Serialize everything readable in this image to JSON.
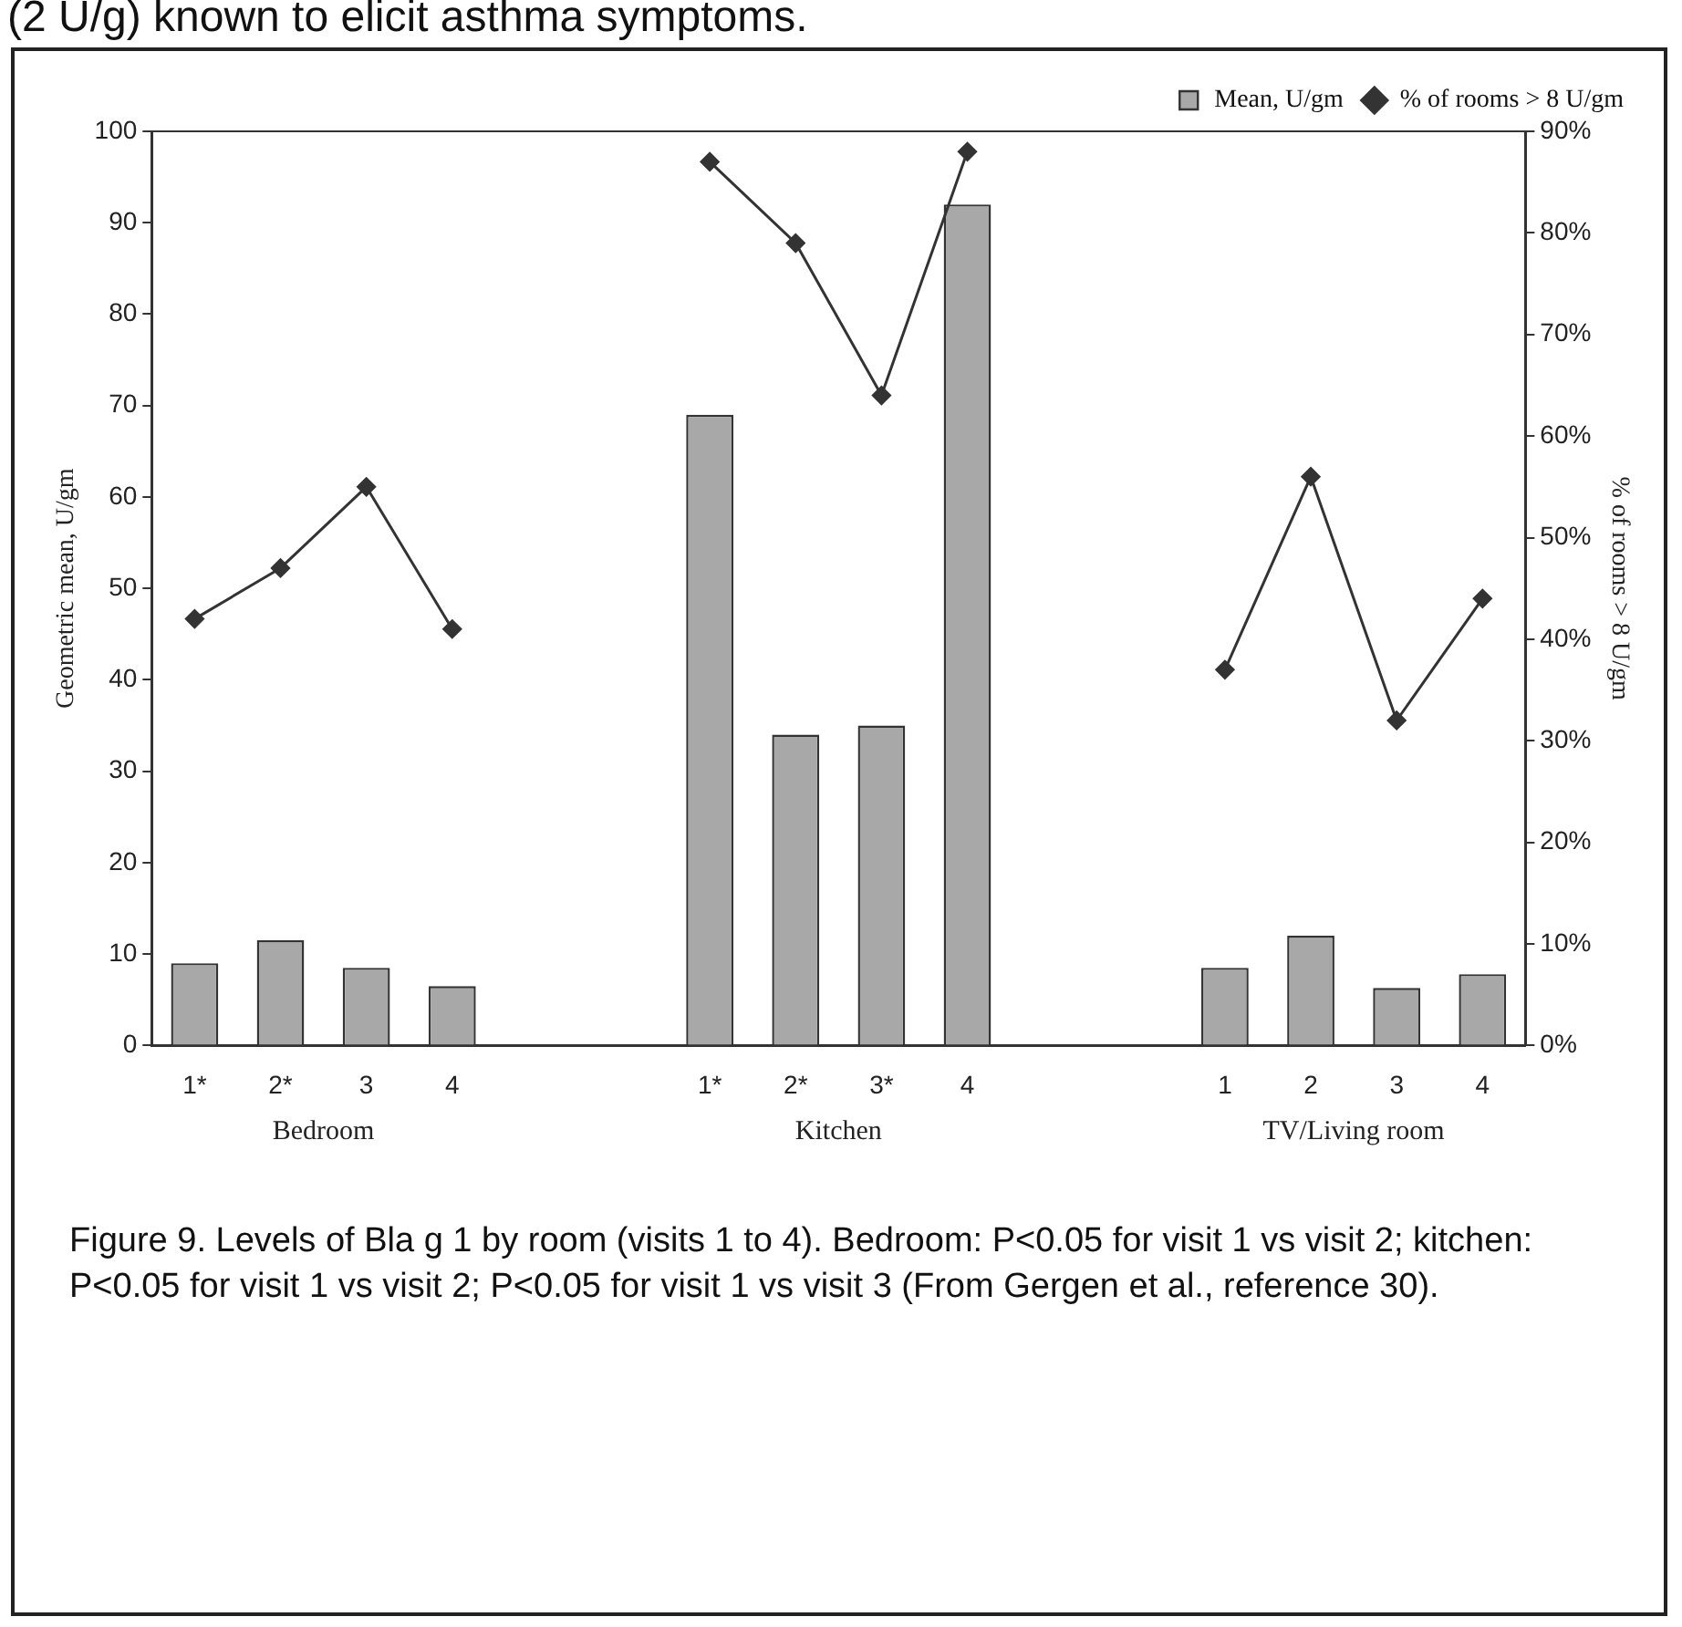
{
  "chart_data": {
    "type": "bar",
    "categories": [
      "1*",
      "2*",
      "3",
      "4",
      null,
      null,
      "1*",
      "2*",
      "3*",
      "4",
      null,
      null,
      "1",
      "2",
      "3",
      "4"
    ],
    "series": [
      {
        "name": "Mean, U/gm",
        "color": "#a8a8a8",
        "values": [
          9,
          11.5,
          8.5,
          6.5,
          null,
          null,
          69,
          34,
          35,
          92,
          null,
          null,
          8.5,
          12,
          6.3,
          7.8
        ]
      },
      {
        "name": "% of rooms > 8 U/gm",
        "type": "line",
        "axis": "y2",
        "color": "#333333",
        "values": [
          42,
          47,
          55,
          41,
          null,
          null,
          87,
          79,
          64,
          88,
          null,
          null,
          37,
          56,
          32,
          44
        ]
      }
    ],
    "ylabel": "Geometric mean, U/gm",
    "y2label": "% of rooms > 8 U/gm",
    "ylim": [
      0,
      100
    ],
    "yticks": [
      0,
      10,
      20,
      30,
      40,
      50,
      60,
      70,
      80,
      90,
      100
    ],
    "y2lim": [
      0,
      90
    ],
    "y2ticks": [
      {
        "value": 0,
        "label": "0%"
      },
      {
        "value": 10,
        "label": "10%"
      },
      {
        "value": 20,
        "label": "20%"
      },
      {
        "value": 30,
        "label": "30%"
      },
      {
        "value": 40,
        "label": "40%"
      },
      {
        "value": 50,
        "label": "50%"
      },
      {
        "value": 60,
        "label": "60%"
      },
      {
        "value": 70,
        "label": "70%"
      },
      {
        "value": 80,
        "label": "80%"
      },
      {
        "value": 90,
        "label": "90%"
      }
    ],
    "grid": false,
    "legend": "top right",
    "marker": "diamond",
    "line_style": "solid",
    "annotations": [
      "(2 U/g) known to elicit asthma symptoms.",
      "Bedroom",
      "Kitchen",
      "TV/Living room",
      "Figure 9. Levels of Bla g 1 by room (visits 1 to 4). Bedroom: P<0.05 for visit 1 vs visit 2; kitchen: P<0.05 for visit 1 vs visit 2; P<0.05 for visit 1 vs visit 3 (From Gergen et al., reference 30)."
    ]
  }
}
